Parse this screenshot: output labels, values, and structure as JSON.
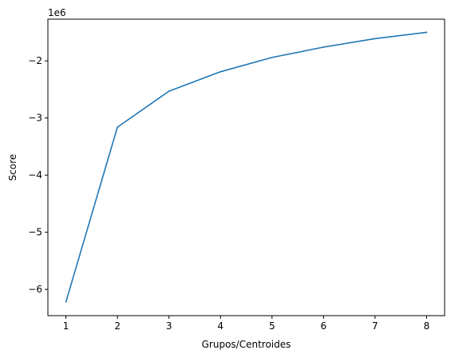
{
  "chart_data": {
    "type": "line",
    "xlabel": "Grupos/Centroides",
    "ylabel": "Score",
    "offset_text": "1e6",
    "x": [
      1,
      2,
      3,
      4,
      5,
      6,
      7,
      8
    ],
    "series": [
      {
        "values": [
          -6.22,
          -3.16,
          -2.53,
          -2.19,
          -1.94,
          -1.76,
          -1.61,
          -1.5
        ],
        "color": "#1f77b4"
      }
    ],
    "xlim": [
      0.65,
      8.35
    ],
    "ylim": [
      -6.46,
      -1.27
    ],
    "xticks": [
      1,
      2,
      3,
      4,
      5,
      6,
      7,
      8
    ],
    "xtick_labels": [
      "1",
      "2",
      "3",
      "4",
      "5",
      "6",
      "7",
      "8"
    ],
    "yticks": [
      -6,
      -5,
      -4,
      -3,
      -2
    ],
    "ytick_labels": [
      "−6",
      "−5",
      "−4",
      "−3",
      "−2"
    ],
    "grid": false,
    "legend": false
  }
}
